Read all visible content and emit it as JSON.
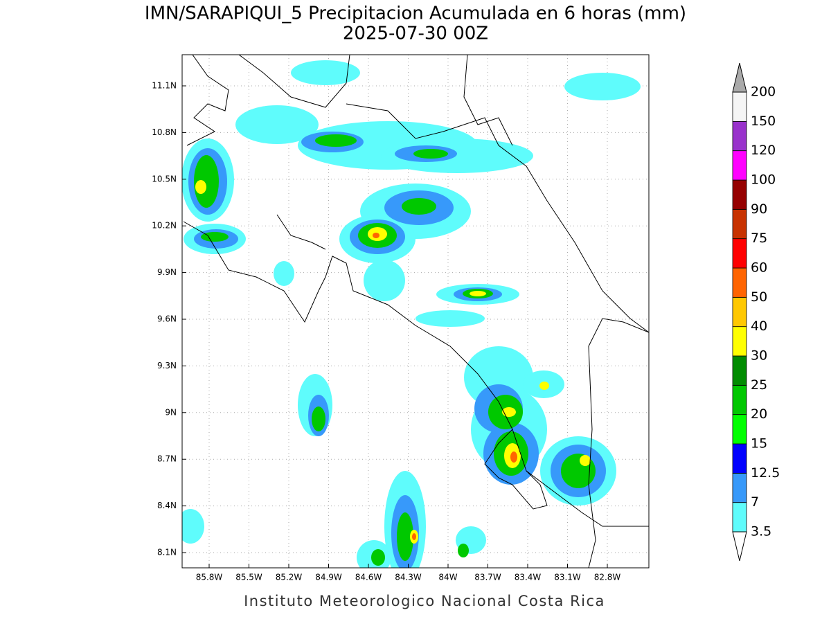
{
  "title": "IMN/SARAPIQUI_5 Precipitacion Acumulada en 6 horas (mm)",
  "subtitle": "2025-07-30 00Z",
  "footer": "Instituto Meteorologico Nacional Costa Rica",
  "map": {
    "lon_ticks": [
      "85.8W",
      "85.5W",
      "85.2W",
      "84.9W",
      "84.6W",
      "84.3W",
      "84W",
      "83.7W",
      "83.4W",
      "83.1W",
      "82.8W"
    ],
    "lat_ticks": [
      "11.1N",
      "10.8N",
      "10.5N",
      "10.2N",
      "9.9N",
      "9.6N",
      "9.3N",
      "9N",
      "8.7N",
      "8.4N",
      "8.1N"
    ]
  },
  "colorbar": {
    "labels": [
      "3.5",
      "7",
      "12.5",
      "15",
      "20",
      "25",
      "30",
      "40",
      "50",
      "60",
      "75",
      "90",
      "100",
      "120",
      "150",
      "200"
    ],
    "colors": [
      "#5ffcfc",
      "#3799fa",
      "#0000ff",
      "#00ff00",
      "#00c800",
      "#008c00",
      "#ffff00",
      "#ffc800",
      "#ff6400",
      "#ff0000",
      "#c83200",
      "#960000",
      "#ff00ff",
      "#9932cc",
      "#f5f5f5"
    ],
    "under_color": "#ffffff",
    "over_color": "#aaaaaa"
  }
}
